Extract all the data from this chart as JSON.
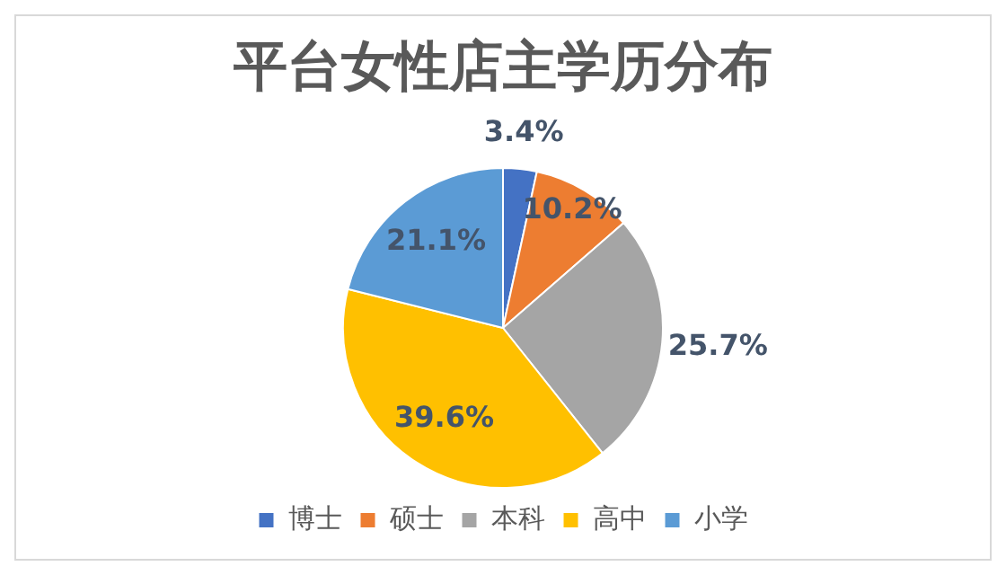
{
  "chart_data": {
    "type": "pie",
    "title": "平台女性店主学历分布",
    "categories": [
      "博士",
      "硕士",
      "本科",
      "高中",
      "小学"
    ],
    "values": [
      3.4,
      10.2,
      25.7,
      39.6,
      21.1
    ],
    "colors": [
      "#4472c4",
      "#ed7d31",
      "#a5a5a5",
      "#ffc000",
      "#5b9bd5"
    ],
    "value_labels": [
      "3.4%",
      "10.2%",
      "25.7%",
      "39.6%",
      "21.1%"
    ],
    "legend": "bottom"
  }
}
